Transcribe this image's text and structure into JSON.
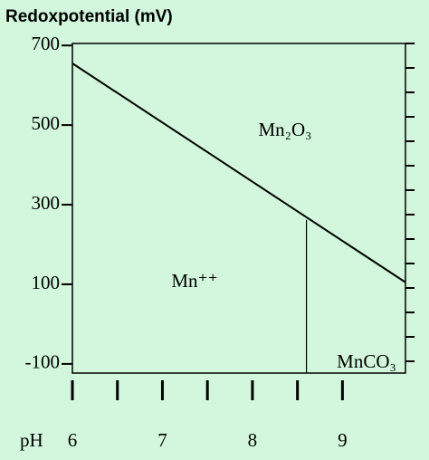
{
  "chart_data": {
    "type": "line",
    "title": "Redoxpotential (mV)",
    "xlabel": "pH",
    "series": [
      {
        "x": [
          6,
          9.7
        ],
        "values": [
          655,
          105
        ],
        "color": "#000000"
      },
      {
        "x": [
          8.6,
          8.6
        ],
        "values": [
          262,
          -123
        ],
        "color": "#000000"
      }
    ],
    "annotations": [
      "Mn₂O₃",
      "Mn⁺⁺",
      "MnCO₃"
    ],
    "xlim": [
      6,
      9.7
    ],
    "ylim": [
      -123,
      705
    ],
    "xticks": [
      6,
      7,
      8,
      9
    ],
    "xminor_ticks": [
      6.5,
      7.5,
      8.5
    ],
    "yticks": [
      700,
      500,
      300,
      100,
      -100
    ],
    "grid": false
  }
}
